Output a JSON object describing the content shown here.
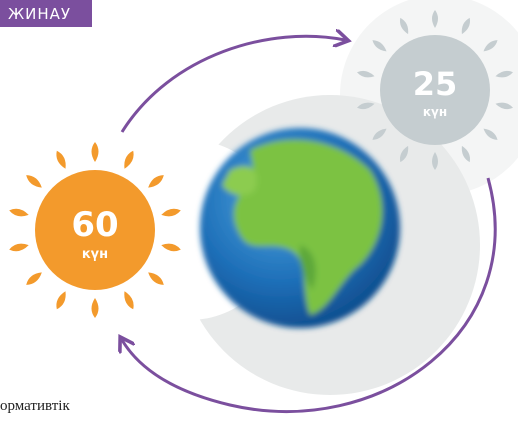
{
  "header": {
    "label": "ЖИНАУ"
  },
  "suns": [
    {
      "value": 60,
      "unit": "күн"
    },
    {
      "value": 25,
      "unit": "күн"
    }
  ],
  "footer": {
    "text": "ормативтік"
  }
}
